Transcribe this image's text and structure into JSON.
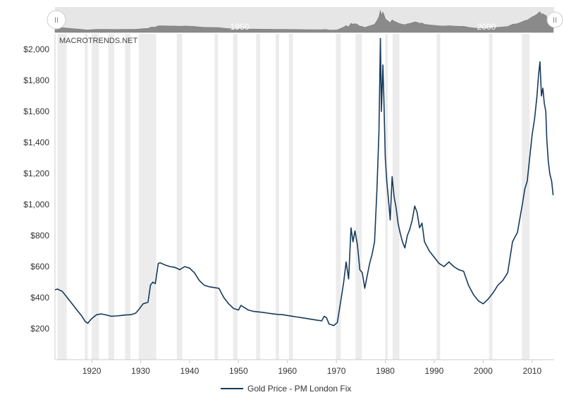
{
  "credit": "MACROTRENDS.NET",
  "navigator": {
    "labels": [
      "1950",
      "2000"
    ],
    "handle_glyph": "II"
  },
  "chart_data": {
    "type": "line",
    "xlim": [
      1912.5,
      2014.5
    ],
    "ylim": [
      0,
      2100
    ],
    "grid": "vertical recession bands",
    "legend_position": "bottom-center",
    "line_color": "#163a5c",
    "band_color": "#ececec",
    "x_ticks": [
      {
        "value": 1920,
        "label": "1920"
      },
      {
        "value": 1930,
        "label": "1930"
      },
      {
        "value": 1940,
        "label": "1940"
      },
      {
        "value": 1950,
        "label": "1950"
      },
      {
        "value": 1960,
        "label": "1960"
      },
      {
        "value": 1970,
        "label": "1970"
      },
      {
        "value": 1980,
        "label": "1980"
      },
      {
        "value": 1990,
        "label": "1990"
      },
      {
        "value": 2000,
        "label": "2000"
      },
      {
        "value": 2010,
        "label": "2010"
      }
    ],
    "y_ticks": [
      {
        "value": 200,
        "label": "$200"
      },
      {
        "value": 400,
        "label": "$400"
      },
      {
        "value": 600,
        "label": "$600"
      },
      {
        "value": 800,
        "label": "$800"
      },
      {
        "value": 1000,
        "label": "$1,000"
      },
      {
        "value": 1200,
        "label": "$1,200"
      },
      {
        "value": 1400,
        "label": "$1,400"
      },
      {
        "value": 1600,
        "label": "$1,600"
      },
      {
        "value": 1800,
        "label": "$1,800"
      },
      {
        "value": 2000,
        "label": "$2,000"
      }
    ],
    "recession_bands": [
      [
        1913.0,
        1914.9
      ],
      [
        1918.6,
        1919.2
      ],
      [
        1920.0,
        1921.5
      ],
      [
        1923.4,
        1924.6
      ],
      [
        1926.8,
        1927.9
      ],
      [
        1929.6,
        1933.2
      ],
      [
        1937.4,
        1938.5
      ],
      [
        1945.1,
        1945.8
      ],
      [
        1948.9,
        1949.8
      ],
      [
        1953.6,
        1954.4
      ],
      [
        1957.6,
        1958.3
      ],
      [
        1960.3,
        1961.1
      ],
      [
        1969.9,
        1970.9
      ],
      [
        1973.9,
        1975.2
      ],
      [
        1980.0,
        1980.5
      ],
      [
        1981.5,
        1982.9
      ],
      [
        1990.5,
        1991.2
      ],
      [
        2001.2,
        2001.9
      ],
      [
        2007.9,
        2009.5
      ]
    ],
    "series": [
      {
        "name": "Gold Price - PM London Fix",
        "points": [
          [
            1912.5,
            450
          ],
          [
            1913,
            455
          ],
          [
            1914,
            440
          ],
          [
            1915,
            400
          ],
          [
            1916,
            360
          ],
          [
            1917,
            320
          ],
          [
            1918,
            280
          ],
          [
            1918.7,
            245
          ],
          [
            1919.2,
            235
          ],
          [
            1920,
            265
          ],
          [
            1921,
            290
          ],
          [
            1922,
            295
          ],
          [
            1923,
            288
          ],
          [
            1924,
            280
          ],
          [
            1925,
            282
          ],
          [
            1926,
            285
          ],
          [
            1927,
            288
          ],
          [
            1928,
            290
          ],
          [
            1929,
            300
          ],
          [
            1929.8,
            330
          ],
          [
            1930.5,
            360
          ],
          [
            1931,
            365
          ],
          [
            1931.5,
            370
          ],
          [
            1932,
            480
          ],
          [
            1932.5,
            500
          ],
          [
            1933,
            490
          ],
          [
            1933.6,
            620
          ],
          [
            1934,
            625
          ],
          [
            1935,
            610
          ],
          [
            1936,
            600
          ],
          [
            1937,
            595
          ],
          [
            1938,
            580
          ],
          [
            1939,
            600
          ],
          [
            1940,
            590
          ],
          [
            1941,
            560
          ],
          [
            1942,
            510
          ],
          [
            1943,
            480
          ],
          [
            1944,
            470
          ],
          [
            1945,
            465
          ],
          [
            1946,
            460
          ],
          [
            1947,
            400
          ],
          [
            1948,
            360
          ],
          [
            1949,
            330
          ],
          [
            1950,
            320
          ],
          [
            1950.5,
            350
          ],
          [
            1951,
            340
          ],
          [
            1952,
            320
          ],
          [
            1953,
            312
          ],
          [
            1954,
            308
          ],
          [
            1955,
            305
          ],
          [
            1956,
            300
          ],
          [
            1957,
            296
          ],
          [
            1958,
            292
          ],
          [
            1959,
            290
          ],
          [
            1960,
            285
          ],
          [
            1961,
            280
          ],
          [
            1962,
            275
          ],
          [
            1963,
            270
          ],
          [
            1964,
            265
          ],
          [
            1965,
            260
          ],
          [
            1966,
            255
          ],
          [
            1967,
            250
          ],
          [
            1967.5,
            280
          ],
          [
            1968,
            270
          ],
          [
            1968.5,
            230
          ],
          [
            1969.5,
            220
          ],
          [
            1970.2,
            240
          ],
          [
            1971,
            400
          ],
          [
            1971.5,
            500
          ],
          [
            1972,
            630
          ],
          [
            1972.5,
            520
          ],
          [
            1973,
            850
          ],
          [
            1973.4,
            760
          ],
          [
            1973.8,
            830
          ],
          [
            1974.3,
            740
          ],
          [
            1974.8,
            580
          ],
          [
            1975.3,
            560
          ],
          [
            1975.8,
            460
          ],
          [
            1976.3,
            540
          ],
          [
            1976.8,
            620
          ],
          [
            1977.3,
            680
          ],
          [
            1977.8,
            760
          ],
          [
            1978.3,
            1100
          ],
          [
            1978.7,
            1470
          ],
          [
            1979,
            2070
          ],
          [
            1979.2,
            1600
          ],
          [
            1979.5,
            1900
          ],
          [
            1979.7,
            1700
          ],
          [
            1980,
            1300
          ],
          [
            1980.3,
            1150
          ],
          [
            1980.6,
            1050
          ],
          [
            1981,
            900
          ],
          [
            1981.4,
            1180
          ],
          [
            1981.8,
            1050
          ],
          [
            1982.2,
            980
          ],
          [
            1982.6,
            880
          ],
          [
            1983,
            820
          ],
          [
            1983.5,
            760
          ],
          [
            1984,
            720
          ],
          [
            1984.5,
            800
          ],
          [
            1985,
            840
          ],
          [
            1985.5,
            900
          ],
          [
            1986,
            990
          ],
          [
            1986.5,
            950
          ],
          [
            1987,
            850
          ],
          [
            1987.5,
            880
          ],
          [
            1988,
            760
          ],
          [
            1989,
            700
          ],
          [
            1990,
            660
          ],
          [
            1991,
            620
          ],
          [
            1992,
            600
          ],
          [
            1993,
            630
          ],
          [
            1994,
            600
          ],
          [
            1995,
            580
          ],
          [
            1996,
            570
          ],
          [
            1997,
            480
          ],
          [
            1998,
            420
          ],
          [
            1999,
            380
          ],
          [
            2000,
            360
          ],
          [
            2001,
            390
          ],
          [
            2002,
            430
          ],
          [
            2003,
            480
          ],
          [
            2004,
            510
          ],
          [
            2005,
            560
          ],
          [
            2006,
            760
          ],
          [
            2007,
            820
          ],
          [
            2008,
            1000
          ],
          [
            2008.5,
            1100
          ],
          [
            2009,
            1150
          ],
          [
            2009.5,
            1300
          ],
          [
            2010,
            1450
          ],
          [
            2010.5,
            1550
          ],
          [
            2011,
            1700
          ],
          [
            2011.3,
            1830
          ],
          [
            2011.6,
            1920
          ],
          [
            2011.9,
            1700
          ],
          [
            2012.2,
            1750
          ],
          [
            2012.5,
            1650
          ],
          [
            2012.8,
            1600
          ],
          [
            2013,
            1420
          ],
          [
            2013.3,
            1280
          ],
          [
            2013.6,
            1200
          ],
          [
            2014,
            1150
          ],
          [
            2014.3,
            1060
          ]
        ]
      }
    ]
  }
}
